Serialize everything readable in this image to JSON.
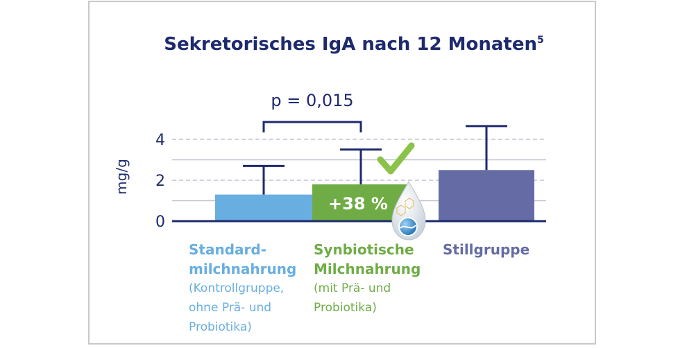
{
  "chart_data": {
    "type": "bar",
    "title": "Sekretorisches IgA nach 12 Monaten",
    "title_superscript": "5",
    "ylabel": "mg/g",
    "ylim": [
      0,
      4.6
    ],
    "yticks": [
      "0",
      "2",
      "4"
    ],
    "grid": true,
    "categories": [
      "Standardmilchnahrung (Kontrollgruppe, ohne Prä- und Probiotika)",
      "Synbiotische Milchnahrung (mit Prä- und Probiotika)",
      "Stillgruppe"
    ],
    "values": [
      1.3,
      1.8,
      2.5
    ],
    "error_upper": [
      2.7,
      3.5,
      4.65
    ],
    "bar_colors": [
      "#68aee0",
      "#6fac46",
      "#656ca5"
    ],
    "bar_label": "+38 %",
    "significance": {
      "label": "p = 0,015",
      "between": [
        0,
        1
      ]
    }
  },
  "labels": {
    "cat1_line1": "Standard-",
    "cat1_line2": "milchnahrung",
    "cat1_sub1": "(Kontrollgruppe,",
    "cat1_sub2": "ohne Prä- und",
    "cat1_sub3": "Probiotika)",
    "cat2_line1": "Synbiotische",
    "cat2_line2": "Milchnahrung",
    "cat2_sub1": "(mit Prä- und",
    "cat2_sub2": "Probiotika)",
    "cat3_line1": "Stillgruppe"
  },
  "colors": {
    "navy": "#1e2a6e",
    "cat1": "#68aee0",
    "cat2": "#6fac46",
    "cat3": "#656ca5",
    "grid": "#c0c4d0"
  },
  "icons": [
    "checkmark-icon",
    "milk-drop-icon"
  ]
}
